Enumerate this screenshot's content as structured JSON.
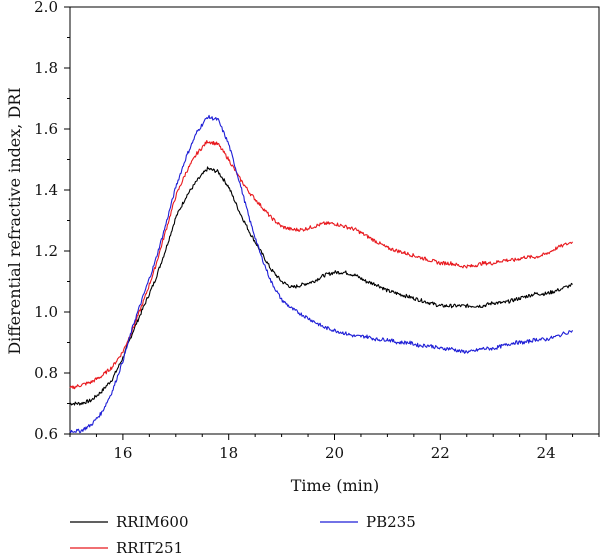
{
  "chart_data": {
    "type": "line",
    "title": "",
    "xlabel": "Time (min)",
    "ylabel": "Differential refractive index, DRI",
    "xlim": [
      15,
      25
    ],
    "ylim": [
      0.6,
      2.0
    ],
    "x_ticks": [
      16,
      18,
      20,
      22,
      24
    ],
    "x_tick_labels": [
      "16",
      "18",
      "20",
      "22",
      "24"
    ],
    "y_ticks": [
      0.6,
      0.8,
      1.0,
      1.2,
      1.4,
      1.6,
      1.8,
      2.0
    ],
    "y_tick_labels": [
      "0.6",
      "0.8",
      "1.0",
      "1.2",
      "1.4",
      "1.6",
      "1.8",
      "2.0"
    ],
    "grid": false,
    "legend_position": "bottom",
    "x": [
      15.0,
      15.2,
      15.4,
      15.6,
      15.8,
      16.0,
      16.2,
      16.4,
      16.6,
      16.8,
      17.0,
      17.2,
      17.4,
      17.6,
      17.8,
      18.0,
      18.2,
      18.4,
      18.6,
      18.8,
      19.0,
      19.2,
      19.4,
      19.6,
      19.8,
      20.0,
      20.2,
      20.4,
      20.6,
      20.8,
      21.0,
      21.2,
      21.4,
      21.6,
      21.8,
      22.0,
      22.2,
      22.4,
      22.6,
      22.8,
      23.0,
      23.2,
      23.4,
      23.6,
      23.8,
      24.0,
      24.2,
      24.5
    ],
    "series": [
      {
        "name": "RRIM600",
        "color": "#000000",
        "values": [
          0.7,
          0.7,
          0.71,
          0.74,
          0.78,
          0.85,
          0.94,
          1.02,
          1.1,
          1.2,
          1.31,
          1.38,
          1.43,
          1.47,
          1.46,
          1.41,
          1.33,
          1.26,
          1.2,
          1.14,
          1.1,
          1.08,
          1.09,
          1.1,
          1.12,
          1.13,
          1.13,
          1.12,
          1.1,
          1.09,
          1.07,
          1.06,
          1.05,
          1.04,
          1.03,
          1.02,
          1.02,
          1.02,
          1.02,
          1.02,
          1.03,
          1.03,
          1.04,
          1.05,
          1.06,
          1.06,
          1.07,
          1.09
        ]
      },
      {
        "name": "RRIT251",
        "color": "#e8191e",
        "values": [
          0.75,
          0.76,
          0.77,
          0.79,
          0.82,
          0.87,
          0.95,
          1.04,
          1.14,
          1.26,
          1.38,
          1.46,
          1.52,
          1.56,
          1.55,
          1.5,
          1.44,
          1.39,
          1.35,
          1.31,
          1.28,
          1.27,
          1.27,
          1.28,
          1.29,
          1.29,
          1.28,
          1.27,
          1.25,
          1.23,
          1.21,
          1.2,
          1.19,
          1.18,
          1.17,
          1.16,
          1.16,
          1.15,
          1.15,
          1.16,
          1.16,
          1.17,
          1.17,
          1.18,
          1.18,
          1.19,
          1.21,
          1.23
        ]
      },
      {
        "name": "PB235",
        "color": "#1f1fd6",
        "values": [
          0.61,
          0.61,
          0.63,
          0.67,
          0.74,
          0.84,
          0.96,
          1.06,
          1.16,
          1.28,
          1.41,
          1.51,
          1.59,
          1.64,
          1.63,
          1.55,
          1.43,
          1.3,
          1.19,
          1.1,
          1.04,
          1.01,
          0.99,
          0.97,
          0.95,
          0.94,
          0.93,
          0.92,
          0.92,
          0.91,
          0.91,
          0.9,
          0.9,
          0.89,
          0.89,
          0.88,
          0.88,
          0.87,
          0.87,
          0.88,
          0.88,
          0.89,
          0.9,
          0.9,
          0.91,
          0.91,
          0.92,
          0.94
        ]
      }
    ]
  }
}
